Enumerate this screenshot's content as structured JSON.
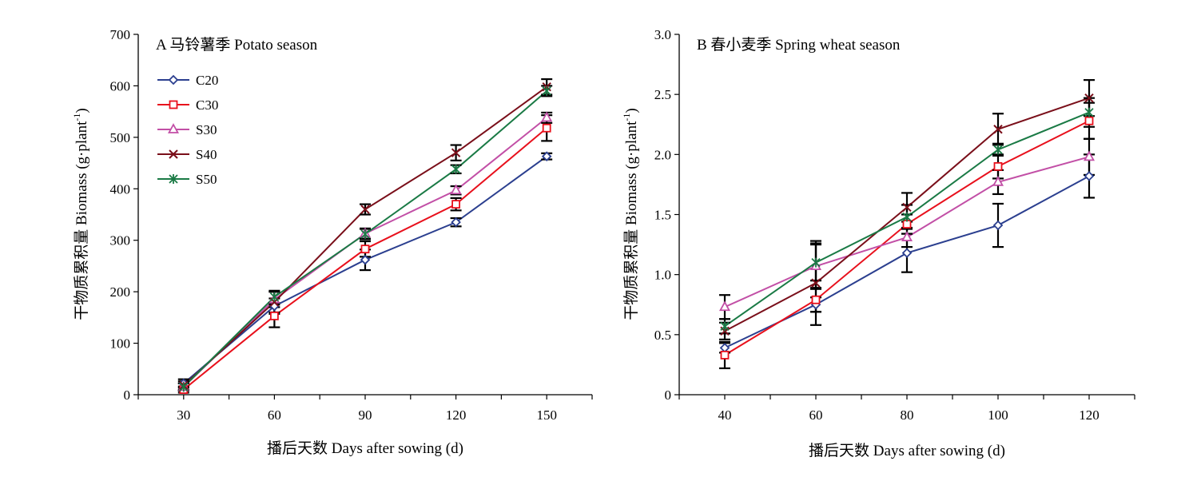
{
  "colors": {
    "C20": "#2b3f8f",
    "C30": "#e8101c",
    "S30": "#c24fa6",
    "S40": "#7a0f1a",
    "S50": "#1a7a45",
    "axis": "#000000",
    "error_bar": "#000000"
  },
  "legend": {
    "placement": "top-left of panel A",
    "entries": [
      {
        "key": "C20",
        "label": "C20",
        "marker": "diamond-open"
      },
      {
        "key": "C30",
        "label": "C30",
        "marker": "square-open"
      },
      {
        "key": "S30",
        "label": "S30",
        "marker": "triangle-open"
      },
      {
        "key": "S40",
        "label": "S40",
        "marker": "x-cross"
      },
      {
        "key": "S50",
        "label": "S50",
        "marker": "asterisk"
      }
    ]
  },
  "chart_data": [
    {
      "type": "line",
      "panel": "A",
      "title": "A  马铃薯季 Potato season",
      "xlabel": "播后天数 Days after sowing (d)",
      "ylabel": "干物质累积量 Biomass (g·plant",
      "ylabel_superscript": "-1",
      "ylabel_suffix": ")",
      "x": [
        30,
        60,
        90,
        120,
        150
      ],
      "x_tick_labels": [
        "30",
        "60",
        "90",
        "120",
        "150"
      ],
      "xlim": [
        15,
        165
      ],
      "ylim": [
        0,
        700
      ],
      "y_ticks": [
        0,
        100,
        200,
        300,
        400,
        500,
        600,
        700
      ],
      "grid": false,
      "series": [
        {
          "name": "C20",
          "values": [
            22,
            172,
            262,
            335,
            463
          ],
          "errors": [
            8,
            15,
            20,
            8,
            6
          ]
        },
        {
          "name": "C30",
          "values": [
            10,
            153,
            283,
            370,
            518
          ],
          "errors": [
            6,
            22,
            15,
            12,
            25
          ]
        },
        {
          "name": "S30",
          "values": [
            15,
            185,
            313,
            397,
            538
          ],
          "errors": [
            7,
            15,
            10,
            8,
            10
          ]
        },
        {
          "name": "S40",
          "values": [
            18,
            180,
            360,
            470,
            598
          ],
          "errors": [
            8,
            20,
            10,
            15,
            15
          ]
        },
        {
          "name": "S50",
          "values": [
            15,
            190,
            312,
            438,
            590
          ],
          "errors": [
            7,
            12,
            10,
            8,
            10
          ]
        }
      ]
    },
    {
      "type": "line",
      "panel": "B",
      "title": "B  春小麦季 Spring wheat season",
      "xlabel": "播后天数 Days after sowing (d)",
      "ylabel": "干物质累积量 Biomass (g·plant",
      "ylabel_superscript": "-1",
      "ylabel_suffix": ")",
      "x": [
        40,
        60,
        80,
        100,
        120
      ],
      "x_tick_labels": [
        "40",
        "60",
        "80",
        "100",
        "120"
      ],
      "xlim": [
        30,
        130
      ],
      "ylim": [
        0,
        3.0
      ],
      "y_ticks": [
        0,
        0.5,
        1.0,
        1.5,
        2.0,
        2.5,
        3.0
      ],
      "y_tick_labels": [
        "0",
        "0.5",
        "1.0",
        "1.5",
        "2.0",
        "2.5",
        "3.0"
      ],
      "grid": false,
      "series": [
        {
          "name": "C20",
          "values": [
            0.39,
            0.75,
            1.18,
            1.41,
            1.82
          ],
          "errors": [
            0.04,
            0.06,
            0.16,
            0.18,
            0.18
          ]
        },
        {
          "name": "C30",
          "values": [
            0.33,
            0.79,
            1.42,
            1.9,
            2.28
          ],
          "errors": [
            0.11,
            0.1,
            0.08,
            0.1,
            0.15
          ]
        },
        {
          "name": "S30",
          "values": [
            0.73,
            1.07,
            1.31,
            1.77,
            1.98
          ],
          "errors": [
            0.1,
            0.19,
            0.08,
            0.1,
            0.15
          ]
        },
        {
          "name": "S40",
          "values": [
            0.53,
            0.93,
            1.56,
            2.21,
            2.47
          ],
          "errors": [
            0.07,
            0.35,
            0.12,
            0.13,
            0.15
          ]
        },
        {
          "name": "S50",
          "values": [
            0.57,
            1.1,
            1.48,
            2.04,
            2.35
          ],
          "errors": [
            0.06,
            0.15,
            0.1,
            0.05,
            0.12
          ]
        }
      ]
    }
  ]
}
